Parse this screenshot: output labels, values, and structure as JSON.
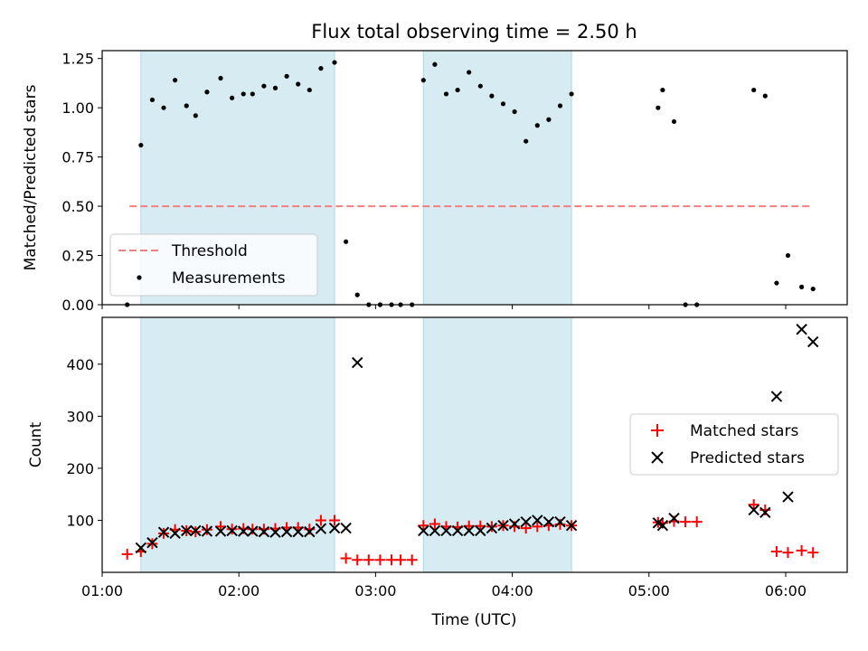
{
  "chart_data": [
    {
      "type": "scatter",
      "title": "Flux total observing time = 2.50 h",
      "xlabel": "",
      "ylabel": "Matched/Predicted stars",
      "xlim": [
        "01:00",
        "06:27"
      ],
      "ylim": [
        0,
        1.29
      ],
      "yticks": [
        "0.00",
        "0.25",
        "0.50",
        "0.75",
        "1.00",
        "1.25"
      ],
      "grid": false,
      "legend_position": "lower-left",
      "shaded_spans": [
        [
          "01:17",
          "02:42"
        ],
        [
          "03:21",
          "04:26"
        ]
      ],
      "shade_color": "#add8e6",
      "series": [
        {
          "name": "Threshold",
          "style": "dashed-line",
          "color": "#f08080",
          "x": [
            "01:12",
            "06:12"
          ],
          "y": [
            0.5,
            0.5
          ]
        },
        {
          "name": "Measurements",
          "style": "dot",
          "color": "#000000",
          "x": [
            "01:11",
            "01:17",
            "01:22",
            "01:27",
            "01:32",
            "01:37",
            "01:41",
            "01:46",
            "01:52",
            "01:57",
            "02:02",
            "02:06",
            "02:11",
            "02:16",
            "02:21",
            "02:26",
            "02:31",
            "02:36",
            "02:42",
            "02:47",
            "02:52",
            "02:57",
            "03:02",
            "03:07",
            "03:11",
            "03:16",
            "03:21",
            "03:26",
            "03:31",
            "03:36",
            "03:41",
            "03:46",
            "03:51",
            "03:56",
            "04:01",
            "04:06",
            "04:11",
            "04:16",
            "04:21",
            "04:26",
            "05:04",
            "05:06",
            "05:11",
            "05:16",
            "05:21",
            "05:46",
            "05:51",
            "05:56",
            "06:01",
            "06:07",
            "06:12"
          ],
          "y": [
            0.0,
            0.81,
            1.04,
            1.0,
            1.14,
            1.01,
            0.96,
            1.08,
            1.15,
            1.05,
            1.07,
            1.07,
            1.11,
            1.1,
            1.16,
            1.12,
            1.09,
            1.2,
            1.23,
            0.32,
            0.05,
            0.0,
            0.0,
            0.0,
            0.0,
            0.0,
            1.14,
            1.22,
            1.07,
            1.09,
            1.18,
            1.11,
            1.06,
            1.02,
            0.98,
            0.83,
            0.91,
            0.94,
            1.01,
            1.07,
            1.0,
            1.09,
            0.93,
            0.0,
            0.0,
            1.09,
            1.06,
            0.11,
            0.25,
            0.09,
            0.08
          ]
        }
      ]
    },
    {
      "type": "scatter",
      "title": "",
      "xlabel": "Time (UTC)",
      "ylabel": "Count",
      "xlim": [
        "01:00",
        "06:27"
      ],
      "ylim": [
        0,
        490
      ],
      "yticks": [
        "100",
        "200",
        "300",
        "400"
      ],
      "xticks": [
        "01:00",
        "02:00",
        "03:00",
        "04:00",
        "05:00",
        "06:00"
      ],
      "grid": false,
      "legend_position": "center-right",
      "shaded_spans": [
        [
          "01:17",
          "02:42"
        ],
        [
          "03:21",
          "04:26"
        ]
      ],
      "shade_color": "#add8e6",
      "series": [
        {
          "name": "Matched stars",
          "style": "plus",
          "color": "#ff0000",
          "x": [
            "01:11",
            "01:17",
            "01:22",
            "01:27",
            "01:32",
            "01:37",
            "01:41",
            "01:46",
            "01:52",
            "01:57",
            "02:02",
            "02:06",
            "02:11",
            "02:16",
            "02:21",
            "02:26",
            "02:31",
            "02:36",
            "02:42",
            "02:47",
            "02:52",
            "02:57",
            "03:02",
            "03:07",
            "03:11",
            "03:16",
            "03:21",
            "03:26",
            "03:31",
            "03:36",
            "03:41",
            "03:46",
            "03:51",
            "03:56",
            "04:01",
            "04:06",
            "04:11",
            "04:16",
            "04:21",
            "04:26",
            "05:04",
            "05:06",
            "05:11",
            "05:16",
            "05:21",
            "05:46",
            "05:51",
            "05:56",
            "06:01",
            "06:07",
            "06:12"
          ],
          "y": [
            35,
            40,
            55,
            75,
            82,
            80,
            78,
            82,
            88,
            83,
            84,
            83,
            83,
            84,
            86,
            86,
            83,
            100,
            100,
            27,
            24,
            24,
            24,
            24,
            24,
            24,
            90,
            93,
            88,
            87,
            89,
            89,
            88,
            90,
            88,
            85,
            88,
            90,
            92,
            90,
            96,
            95,
            98,
            97,
            97,
            130,
            120,
            40,
            38,
            42,
            38
          ]
        },
        {
          "name": "Predicted stars",
          "style": "x",
          "color": "#000000",
          "x": [
            "01:17",
            "01:22",
            "01:27",
            "01:32",
            "01:37",
            "01:41",
            "01:46",
            "01:52",
            "01:57",
            "02:02",
            "02:06",
            "02:11",
            "02:16",
            "02:21",
            "02:26",
            "02:31",
            "02:36",
            "02:42",
            "02:47",
            "02:52",
            "03:21",
            "03:26",
            "03:31",
            "03:36",
            "03:41",
            "03:46",
            "03:51",
            "03:56",
            "04:01",
            "04:06",
            "04:11",
            "04:16",
            "04:21",
            "04:26",
            "05:04",
            "05:06",
            "05:11",
            "05:46",
            "05:51",
            "05:56",
            "06:01",
            "06:07",
            "06:12"
          ],
          "y": [
            47,
            57,
            77,
            75,
            80,
            80,
            79,
            79,
            80,
            79,
            79,
            78,
            77,
            78,
            78,
            78,
            84,
            85,
            85,
            403,
            80,
            80,
            80,
            80,
            80,
            80,
            85,
            90,
            93,
            97,
            100,
            97,
            97,
            90,
            95,
            90,
            104,
            120,
            115,
            338,
            145,
            467,
            443
          ]
        }
      ]
    }
  ]
}
